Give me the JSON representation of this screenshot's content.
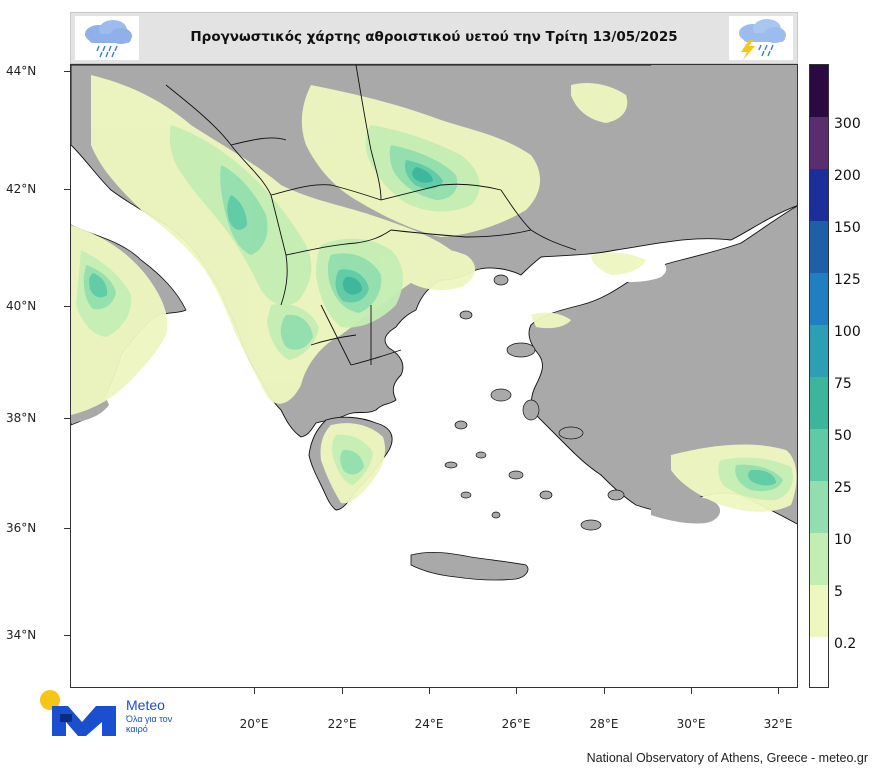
{
  "header": {
    "title": "Προγνωστικός χάρτης αθροιστικού υετού την Τρίτη 13/05/2025",
    "left_icon": "rain-cloud-icon",
    "right_icon": "thunderstorm-cloud-icon"
  },
  "axes": {
    "y_ticks": [
      "44°N",
      "42°N",
      "40°N",
      "38°N",
      "36°N",
      "34°N"
    ],
    "x_ticks": [
      "20°E",
      "22°E",
      "24°E",
      "26°E",
      "28°E",
      "30°E",
      "32°E"
    ]
  },
  "legend": {
    "levels": [
      "0.2",
      "5",
      "10",
      "25",
      "50",
      "75",
      "100",
      "125",
      "150",
      "200",
      "300"
    ],
    "colors": [
      "#ffffff",
      "#eef7c0",
      "#c4edb4",
      "#93deae",
      "#5fcaa5",
      "#3cb59b",
      "#2d9fb5",
      "#1f7fc0",
      "#1e5fa8",
      "#1b2f9b",
      "#5a2d6e",
      "#2a0a40"
    ]
  },
  "map_colors": {
    "sea": "#ffffff",
    "land": "#a9a9a9",
    "border": "#111111"
  },
  "logo": {
    "name": "Meteo",
    "tagline": "Όλα για τον καιρό"
  },
  "credit": "National Observatory of Athens, Greece - meteo.gr"
}
